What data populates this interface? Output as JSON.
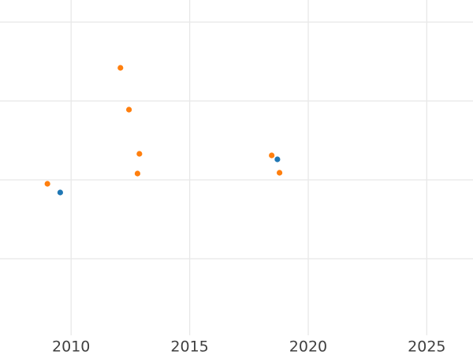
{
  "page": {
    "background_color": "#ffffff"
  },
  "chart_data": {
    "type": "scatter",
    "title": "",
    "xlabel": "",
    "ylabel": "",
    "legend_visible": false,
    "grid": true,
    "grid_color": "#e8e8e8",
    "tick_label_color": "#404040",
    "background_color": "#ffffff",
    "x_tick_labels": [
      "2010",
      "2015",
      "2020",
      "2025"
    ],
    "x_tick_values": [
      2010,
      2015,
      2020,
      2025
    ],
    "xlim": [
      2007.0,
      2026.95
    ],
    "ylim": [
      -0.97,
      3.28
    ],
    "y_tick_labels_visible": false,
    "y_gridline_values": [
      0,
      1,
      2,
      3
    ],
    "marker_radius_px": 3.6,
    "series": [
      {
        "name": "orange",
        "color": "#ff7f0e",
        "points": [
          {
            "x": 2009.0,
            "y": 0.95
          },
          {
            "x": 2012.08,
            "y": 2.42
          },
          {
            "x": 2012.44,
            "y": 1.89
          },
          {
            "x": 2012.8,
            "y": 1.08
          },
          {
            "x": 2012.88,
            "y": 1.33
          },
          {
            "x": 2018.46,
            "y": 1.31
          },
          {
            "x": 2018.79,
            "y": 1.09
          }
        ]
      },
      {
        "name": "blue",
        "color": "#1f77b4",
        "points": [
          {
            "x": 2009.54,
            "y": 0.84
          },
          {
            "x": 2018.7,
            "y": 1.26
          }
        ]
      }
    ]
  }
}
